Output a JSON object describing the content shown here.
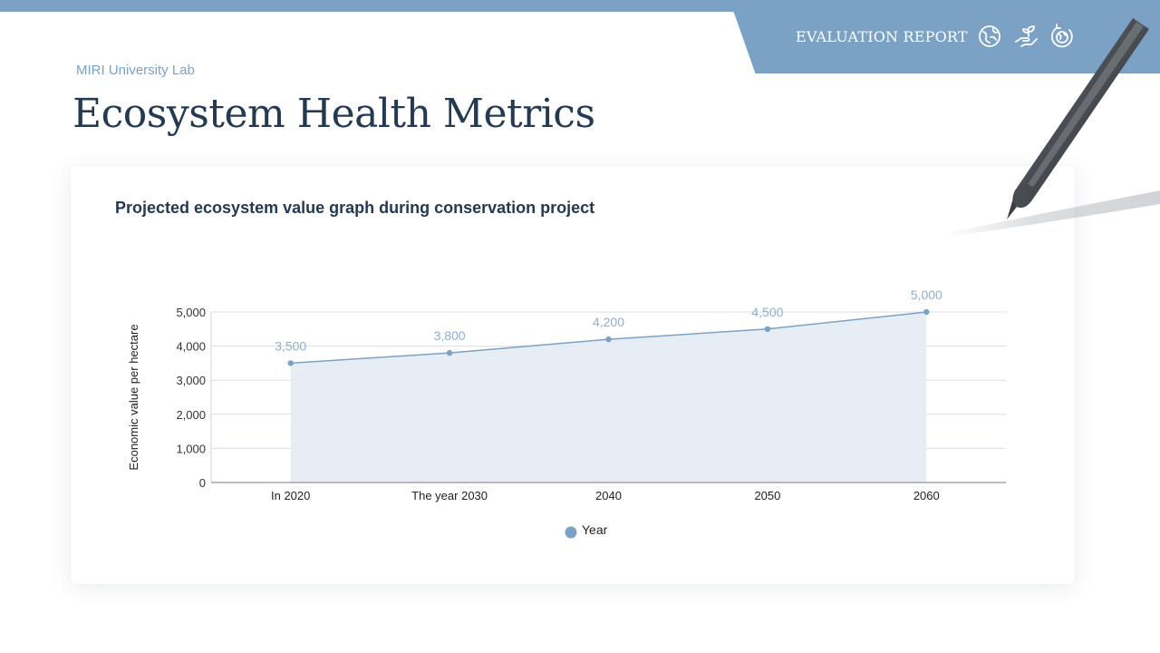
{
  "header": {
    "badge_title": "EVALUATION REPORT",
    "badge_icons": [
      "earth-leaf-icon",
      "hand-plant-icon",
      "globe-recycle-icon"
    ],
    "lab_name": "MIRI University Lab",
    "page_title": "Ecosystem Health Metrics"
  },
  "colors": {
    "accent": "#7ba2c4",
    "title": "#243a52",
    "area_fill": "#e3ebf3",
    "grid": "#d9dfe6"
  },
  "chart_data": {
    "type": "area",
    "title": "Projected ecosystem value graph during conservation project",
    "categories": [
      "In 2020",
      "The year 2030",
      "2040",
      "2050",
      "2060"
    ],
    "series": [
      {
        "name": "Year",
        "values": [
          3500,
          3800,
          4200,
          4500,
          5000
        ]
      }
    ],
    "data_labels": [
      "3,500",
      "3,800",
      "4,200",
      "4,500",
      "5,000"
    ],
    "ylabel": "Economic value per hectare",
    "xlabel": "",
    "ylim": [
      0,
      5000
    ],
    "yticks": [
      0,
      1000,
      2000,
      3000,
      4000,
      5000
    ],
    "ytick_labels": [
      "0",
      "1,000",
      "2,000",
      "3,000",
      "4,000",
      "5,000"
    ],
    "grid": true,
    "legend": "bottom-center"
  }
}
